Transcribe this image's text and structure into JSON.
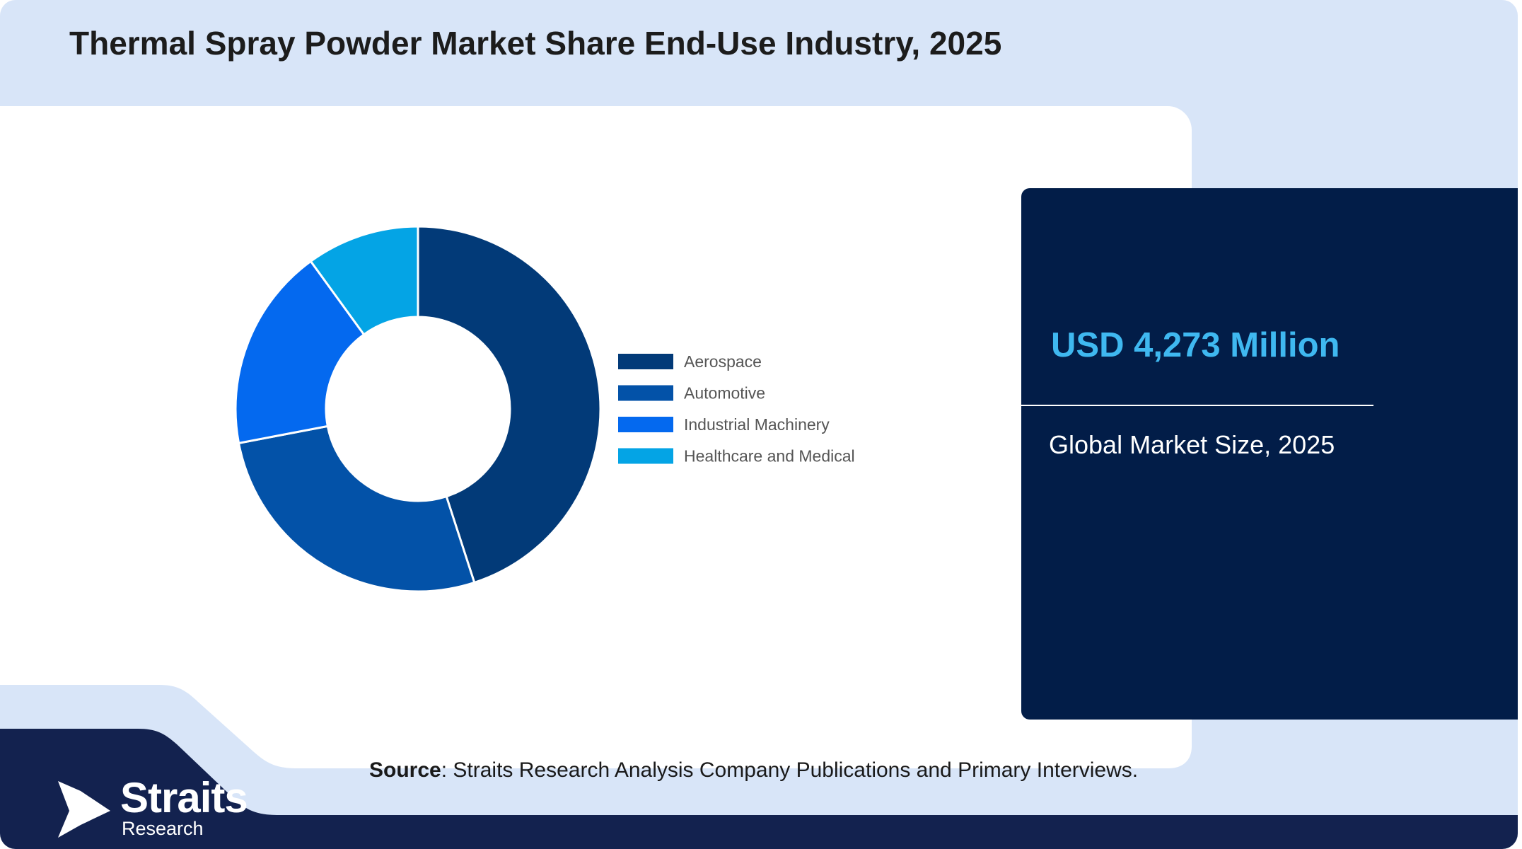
{
  "title": "Thermal Spray Powder Market Share End-Use Industry, 2025",
  "stat": {
    "value": "USD 4,273 Million",
    "label": "Global Market Size, 2025"
  },
  "source": {
    "prefix": "Source",
    "text": ": Straits Research Analysis Company Publications and Primary Interviews."
  },
  "logo": {
    "word": "Straits",
    "sub": "Research"
  },
  "colors": {
    "background": "#d8e5f8",
    "panel": "#021d48",
    "accent": "#3fb8f0"
  },
  "chart_data": {
    "type": "pie",
    "donut": true,
    "title": "",
    "legend_position": "right",
    "categories": [
      "Aerospace",
      "Automotive",
      "Industrial Machinery",
      "Healthcare and Medical"
    ],
    "values": [
      45,
      27,
      18,
      10
    ],
    "colors": [
      "#023a78",
      "#0352a8",
      "#0469ef",
      "#04a4e5"
    ]
  }
}
